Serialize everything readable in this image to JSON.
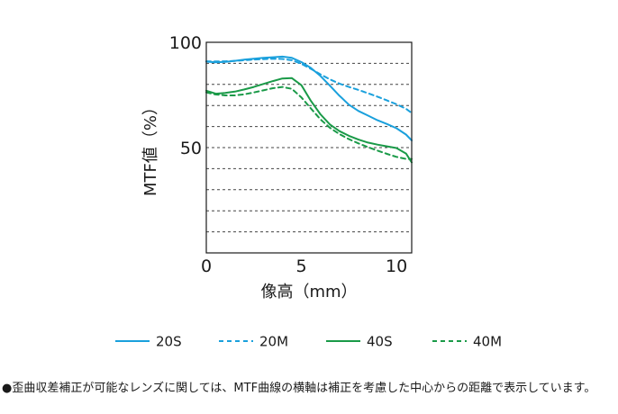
{
  "chart_data": {
    "type": "line",
    "title": "",
    "xlabel": "像高（mm）",
    "ylabel": "MTF値（%）",
    "xlim": [
      0,
      10.8
    ],
    "ylim": [
      0,
      100
    ],
    "x_ticks": [
      "0",
      "5",
      "10"
    ],
    "y_ticks": [
      "50",
      "100"
    ],
    "grid": "horizontal dashed lines every 10%",
    "legend_position": "bottom",
    "series": [
      {
        "name": "20S",
        "color": "#1aa0dc",
        "dash": "solid",
        "x": [
          0,
          0.5,
          1,
          1.5,
          2,
          2.5,
          3,
          3.5,
          4,
          4.5,
          5,
          5.5,
          6,
          6.5,
          7,
          7.5,
          8,
          8.5,
          9,
          9.5,
          10,
          10.5,
          10.8
        ],
        "y": [
          90.8,
          90.5,
          90.7,
          91.2,
          91.8,
          92.2,
          92.6,
          92.9,
          93.2,
          92.6,
          90.6,
          87.8,
          84,
          79.4,
          74.6,
          70.4,
          67.4,
          65.2,
          63,
          61.2,
          59.2,
          56.2,
          53.4
        ]
      },
      {
        "name": "20M",
        "color": "#1aa0dc",
        "dash": "dashed",
        "x": [
          0,
          0.5,
          1,
          1.5,
          2,
          2.5,
          3,
          3.5,
          4,
          4.5,
          5,
          5.5,
          6,
          6.5,
          7,
          7.5,
          8,
          8.5,
          9,
          9.5,
          10,
          10.5,
          10.8
        ],
        "y": [
          91,
          90.9,
          91,
          91.2,
          91.5,
          91.8,
          92,
          92.2,
          92.1,
          91.5,
          89.8,
          87.4,
          84.8,
          82.4,
          80.4,
          78.8,
          77.4,
          75.8,
          74.2,
          72.4,
          70.6,
          68.4,
          66.4
        ]
      },
      {
        "name": "40S",
        "color": "#1a9a48",
        "dash": "solid",
        "x": [
          0,
          0.5,
          1,
          1.5,
          2,
          2.5,
          3,
          3.5,
          4,
          4.5,
          5,
          5.5,
          6,
          6.5,
          7,
          7.5,
          8,
          8.5,
          9,
          9.5,
          10,
          10.5,
          10.8
        ],
        "y": [
          77,
          75.6,
          76,
          76.6,
          77.6,
          78.8,
          80.2,
          81.6,
          82.8,
          83,
          79.6,
          72.2,
          65.8,
          61,
          57.8,
          55.6,
          53.8,
          52.4,
          51.4,
          50.6,
          49.8,
          47.2,
          43
        ]
      },
      {
        "name": "40M",
        "color": "#1a9a48",
        "dash": "dashed",
        "x": [
          0,
          0.5,
          1,
          1.5,
          2,
          2.5,
          3,
          3.5,
          4,
          4.5,
          5,
          5.5,
          6,
          6.5,
          7,
          7.5,
          8,
          8.5,
          9,
          9.5,
          10,
          10.5,
          10.8
        ],
        "y": [
          76.2,
          75.2,
          74.8,
          74.8,
          75.3,
          76.2,
          77.2,
          78.2,
          78.8,
          77.9,
          73.8,
          68.6,
          63.4,
          59.4,
          56.4,
          54,
          52,
          50.2,
          48.6,
          47,
          45.6,
          44.6,
          44.6
        ]
      }
    ]
  },
  "note": "●歪曲収差補正が可能なレンズに関しては、MTF曲線の横軸は補正を考慮した中心からの距離で表示しています。"
}
